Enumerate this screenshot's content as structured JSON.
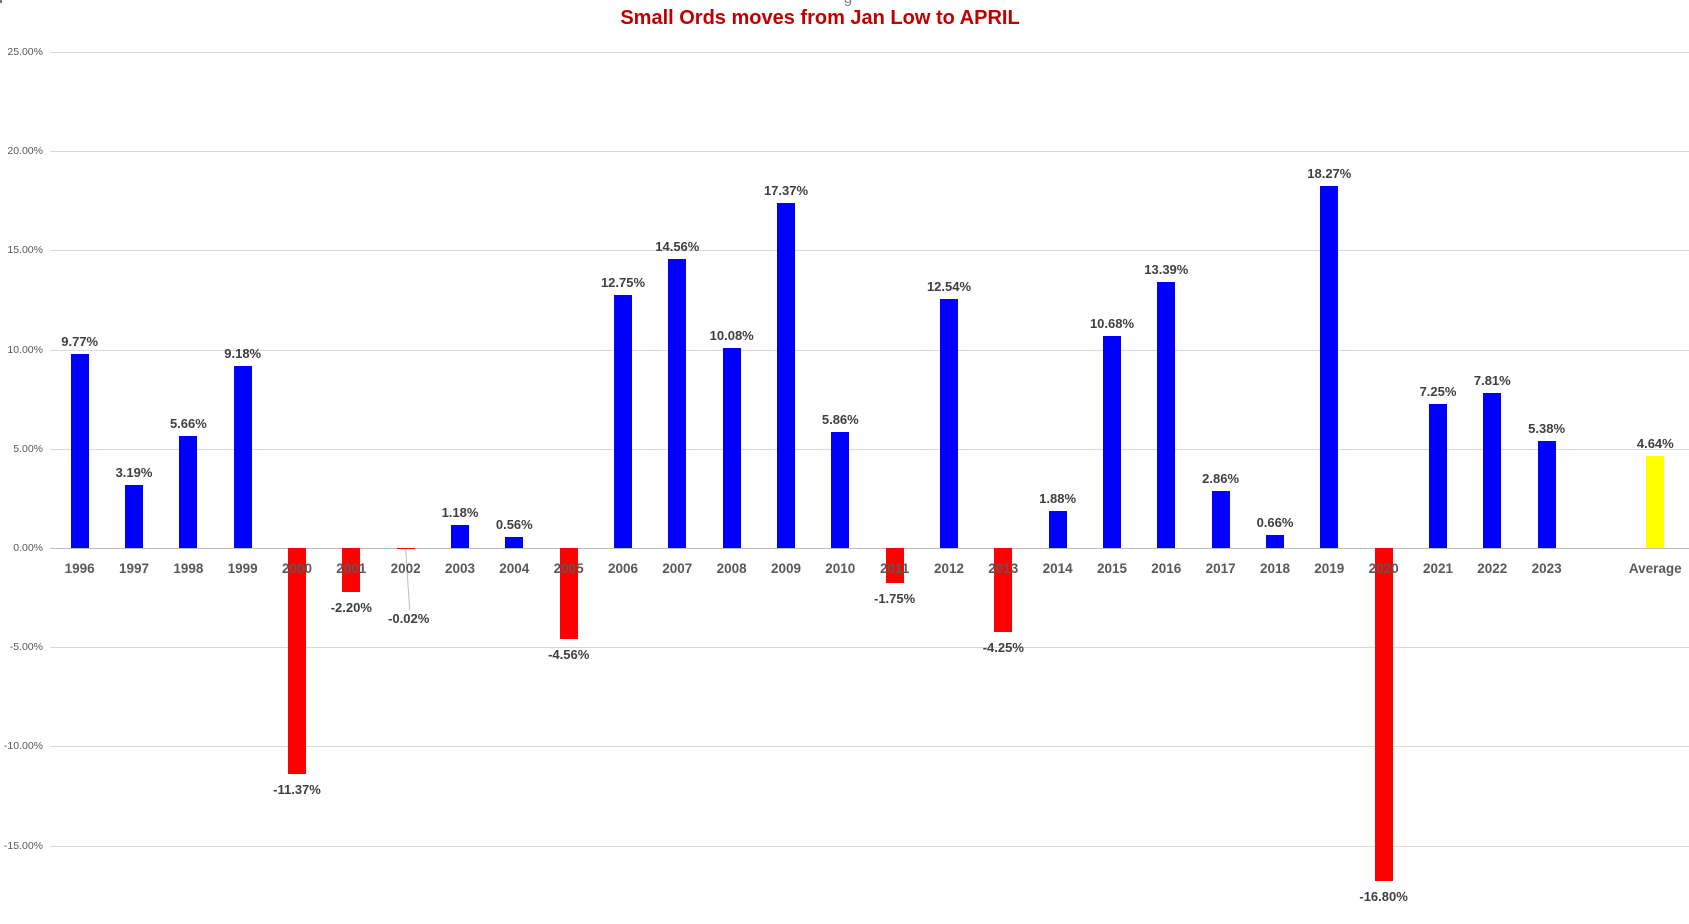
{
  "chart_data": {
    "type": "bar",
    "title": "Small Ords moves from Jan Low to APRIL",
    "title_color": "#C00000",
    "legend": "none",
    "grid": true,
    "categories": [
      "1996",
      "1997",
      "1998",
      "1999",
      "2000",
      "2001",
      "2002",
      "2003",
      "2004",
      "2005",
      "2006",
      "2007",
      "2008",
      "2009",
      "2010",
      "2011",
      "2012",
      "2013",
      "2014",
      "2015",
      "2016",
      "2017",
      "2018",
      "2019",
      "2020",
      "2021",
      "2022",
      "2023",
      "Average"
    ],
    "values": [
      9.77,
      3.19,
      5.66,
      9.18,
      -11.37,
      -2.2,
      -0.02,
      1.18,
      0.56,
      -4.56,
      12.75,
      14.56,
      10.08,
      17.37,
      5.86,
      -1.75,
      12.54,
      -4.25,
      1.88,
      10.68,
      13.39,
      2.86,
      0.66,
      18.27,
      -16.8,
      7.25,
      7.81,
      5.38,
      4.64
    ],
    "data_labels": [
      "9.77%",
      "3.19%",
      "5.66%",
      "9.18%",
      "-11.37%",
      "-2.20%",
      "-0.02%",
      "1.18%",
      "0.56%",
      "-4.56%",
      "12.75%",
      "14.56%",
      "10.08%",
      "17.37%",
      "5.86%",
      "-1.75%",
      "12.54%",
      "-4.25%",
      "1.88%",
      "10.68%",
      "13.39%",
      "2.86%",
      "0.66%",
      "18.27%",
      "-16.80%",
      "7.25%",
      "7.81%",
      "5.38%",
      "4.64%"
    ],
    "colors": [
      "#0000FF",
      "#0000FF",
      "#0000FF",
      "#0000FF",
      "#FF0000",
      "#FF0000",
      "#FF0000",
      "#0000FF",
      "#0000FF",
      "#FF0000",
      "#0000FF",
      "#0000FF",
      "#0000FF",
      "#0000FF",
      "#0000FF",
      "#FF0000",
      "#0000FF",
      "#FF0000",
      "#0000FF",
      "#0000FF",
      "#0000FF",
      "#0000FF",
      "#0000FF",
      "#0000FF",
      "#FF0000",
      "#0000FF",
      "#0000FF",
      "#0000FF",
      "#FFFF00"
    ],
    "positive_color": "#0000FF",
    "negative_color": "#FF0000",
    "average_color": "#FFFF00",
    "gap_before_average": true,
    "y_axis": {
      "tick_step": 5,
      "ticks": [
        {
          "value": 25,
          "label": "25.00%"
        },
        {
          "value": 20,
          "label": "20.00%"
        },
        {
          "value": 15,
          "label": "15.00%"
        },
        {
          "value": 10,
          "label": "10.00%"
        },
        {
          "value": 5,
          "label": "5.00%"
        },
        {
          "value": 0,
          "label": "0.00%"
        },
        {
          "value": -5,
          "label": "-5.00%"
        },
        {
          "value": -10,
          "label": "-10.00%"
        },
        {
          "value": -15,
          "label": "-15.00%"
        }
      ]
    },
    "callout": {
      "category": "2002",
      "label": "-0.02%"
    },
    "clipped_text_fragment": "g",
    "left_edge_fragment": "0"
  }
}
